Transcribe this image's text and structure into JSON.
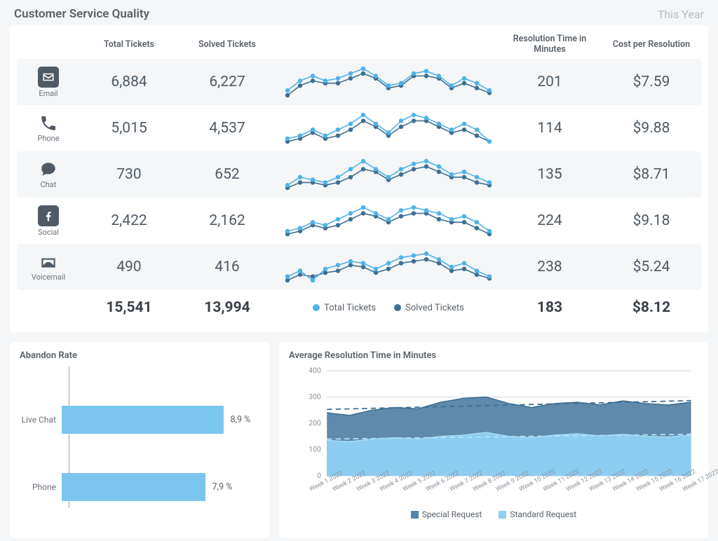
{
  "header": {
    "title": "Customer Service Quality",
    "period": "This Year"
  },
  "columns": {
    "channel": "",
    "total_tickets": "Total Tickets",
    "solved_tickets": "Solved Tickets",
    "sparkline": "",
    "resolution_time": "Resolution Time in Minutes",
    "cost": "Cost per Resolution"
  },
  "spark_colors": {
    "total": "#50b2e7",
    "solved": "#3d6f93",
    "axis": "#bfc6cc",
    "marker_radius": 3.2
  },
  "channels": [
    {
      "id": "email",
      "label": "Email",
      "icon": "email-box",
      "total": "6,884",
      "solved": "6,227",
      "res": "201",
      "cost": "$7.59",
      "spark_total": [
        18,
        26,
        30,
        26,
        28,
        32,
        36,
        30,
        22,
        24,
        32,
        34,
        30,
        22,
        28,
        24,
        18
      ],
      "spark_solved": [
        14,
        22,
        26,
        24,
        24,
        28,
        32,
        28,
        20,
        22,
        30,
        30,
        28,
        20,
        24,
        20,
        16
      ]
    },
    {
      "id": "phone",
      "label": "Phone",
      "icon": "phone",
      "total": "5,015",
      "solved": "4,537",
      "res": "114",
      "cost": "$9.88",
      "spark_total": [
        16,
        18,
        22,
        18,
        22,
        26,
        32,
        26,
        20,
        28,
        32,
        30,
        26,
        22,
        26,
        22,
        14
      ],
      "spark_solved": [
        14,
        16,
        20,
        16,
        18,
        22,
        28,
        24,
        18,
        24,
        28,
        28,
        24,
        20,
        22,
        18,
        14
      ]
    },
    {
      "id": "chat",
      "label": "Chat",
      "icon": "chat",
      "total": "730",
      "solved": "652",
      "res": "135",
      "cost": "$8.71",
      "spark_total": [
        16,
        22,
        20,
        18,
        22,
        28,
        34,
        28,
        22,
        28,
        32,
        34,
        30,
        24,
        26,
        22,
        18
      ],
      "spark_solved": [
        14,
        18,
        18,
        16,
        18,
        22,
        28,
        26,
        20,
        24,
        28,
        30,
        26,
        22,
        22,
        18,
        16
      ]
    },
    {
      "id": "social",
      "label": "Social",
      "icon": "facebook",
      "total": "2,422",
      "solved": "2,162",
      "res": "224",
      "cost": "$9.18",
      "spark_total": [
        16,
        18,
        22,
        20,
        24,
        28,
        32,
        28,
        24,
        30,
        32,
        30,
        28,
        24,
        26,
        22,
        16
      ],
      "spark_solved": [
        14,
        16,
        20,
        18,
        20,
        24,
        28,
        26,
        22,
        26,
        28,
        28,
        24,
        22,
        22,
        18,
        14
      ]
    },
    {
      "id": "voicemail",
      "label": "Voicemail",
      "icon": "voicemail",
      "total": "490",
      "solved": "416",
      "res": "238",
      "cost": "$5.24",
      "spark_total": [
        14,
        20,
        10,
        22,
        26,
        30,
        28,
        22,
        28,
        34,
        36,
        38,
        32,
        24,
        28,
        20,
        14
      ],
      "spark_solved": [
        10,
        16,
        14,
        18,
        20,
        26,
        24,
        18,
        22,
        28,
        30,
        32,
        28,
        20,
        22,
        16,
        12
      ]
    }
  ],
  "totals": {
    "total": "15,541",
    "solved": "13,994",
    "res": "183",
    "cost": "$8.12",
    "legend_total": "Total Tickets",
    "legend_solved": "Solved Tickets"
  },
  "abandon": {
    "title": "Abandon Rate",
    "bar_color": "#7ac6ee",
    "axis_color": "#9aa2a9",
    "max_pct": 10.5,
    "rows": [
      {
        "label": "Live Chat",
        "value": 8.9,
        "display": "8,9 %"
      },
      {
        "label": "Phone",
        "value": 7.9,
        "display": "7,9 %"
      }
    ]
  },
  "avg_resolution": {
    "title": "Average Resolution Time in Minutes",
    "ylim": [
      0,
      400
    ],
    "ytick_step": 100,
    "grid_color": "#d6dbe0",
    "axis_text_color": "#8a9199",
    "series": {
      "special": {
        "label": "Special Request",
        "color": "#5684a6",
        "trend": "#3b6f93",
        "values": [
          240,
          230,
          250,
          260,
          255,
          280,
          295,
          300,
          275,
          260,
          275,
          280,
          270,
          285,
          275,
          270,
          280
        ]
      },
      "standard": {
        "label": "Standard Request",
        "color": "#8ed1f4",
        "trend": "#b6e2fa",
        "values": [
          135,
          130,
          140,
          145,
          140,
          150,
          155,
          165,
          150,
          145,
          155,
          160,
          152,
          158,
          150,
          148,
          155
        ]
      }
    },
    "x_labels": [
      "Week 1 2022",
      "Week 2 2022",
      "Week 3 2022",
      "Week 4 2022",
      "Week 5 2022",
      "Week 6 2022",
      "Week 7 2022",
      "Week 8 2022",
      "Week 9 2022",
      "Week 10 2022",
      "Week 11 2022",
      "Week 12 2022",
      "Week 13 2022",
      "Week 14 2022",
      "Week 15 2022",
      "Week 16 2022",
      "Week 17 2022"
    ]
  }
}
